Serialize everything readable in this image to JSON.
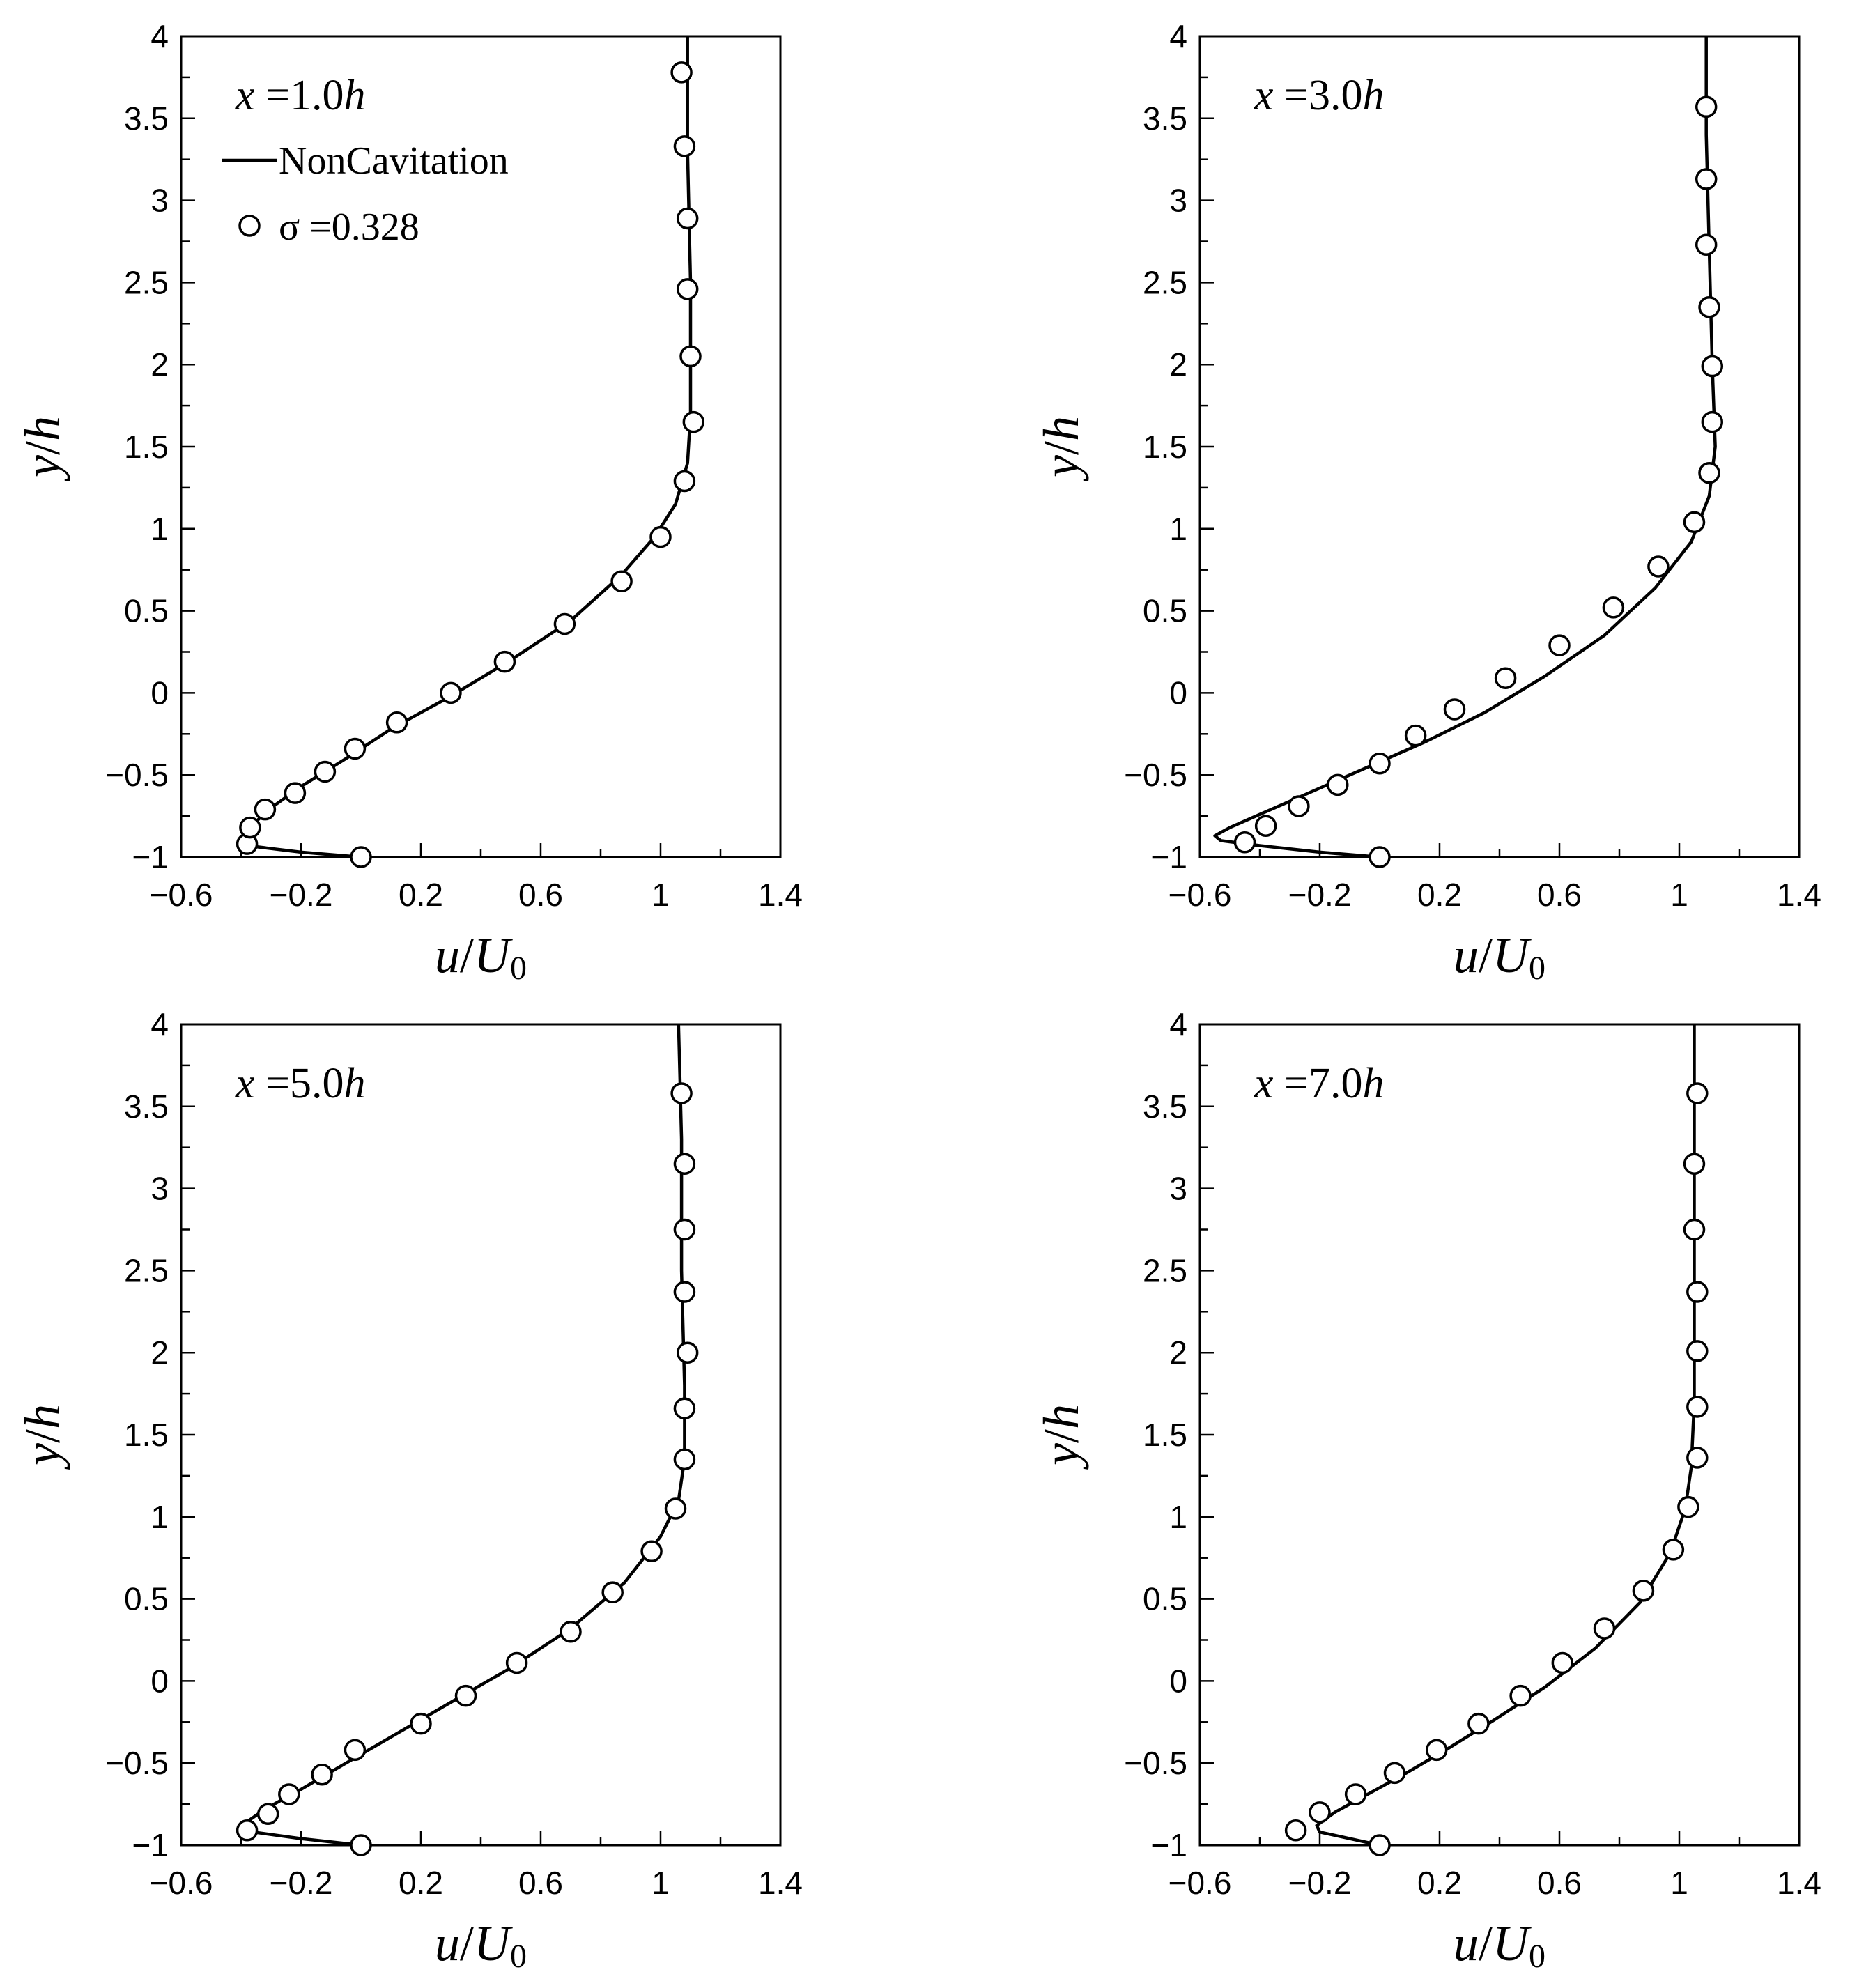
{
  "legend": {
    "line_label": "NonCavitation",
    "marker_label": "σ =0.328"
  },
  "chart_data": [
    {
      "type": "line",
      "title": "x =1.0h",
      "title_parts": {
        "x": "x",
        "eq": " =",
        "num": "1.0",
        "h": "h"
      },
      "xlabel": "u/U0",
      "xlabel_parts": {
        "main": "u/U",
        "sub": "0"
      },
      "ylabel": "y/h",
      "xlim": [
        -0.6,
        1.4
      ],
      "ylim": [
        -1,
        4
      ],
      "xticks": [
        "-0.6",
        "-0.2",
        "0.2",
        "0.6",
        "1",
        "1.4"
      ],
      "yticks": [
        "4",
        "3.5",
        "3",
        "2.5",
        "2",
        "1.5",
        "1",
        "0.5",
        "0",
        "-0.5",
        "-1"
      ],
      "legend_position": "top-left",
      "series": [
        {
          "name": "NonCavitation",
          "style": "line",
          "x": [
            0.0,
            -0.2,
            -0.38,
            -0.39,
            -0.36,
            -0.3,
            -0.2,
            -0.05,
            0.1,
            0.3,
            0.5,
            0.7,
            0.87,
            0.98,
            1.05,
            1.09,
            1.1,
            1.1,
            1.09,
            1.09
          ],
          "y": [
            -1.0,
            -0.97,
            -0.93,
            -0.88,
            -0.8,
            -0.7,
            -0.57,
            -0.4,
            -0.22,
            -0.02,
            0.2,
            0.44,
            0.72,
            0.95,
            1.15,
            1.4,
            1.7,
            2.5,
            3.3,
            4.0
          ]
        },
        {
          "name": "σ =0.328",
          "style": "marker",
          "x": [
            0.0,
            -0.38,
            -0.37,
            -0.32,
            -0.22,
            -0.12,
            -0.02,
            0.12,
            0.3,
            0.48,
            0.68,
            0.87,
            1.0,
            1.08,
            1.11,
            1.1,
            1.09,
            1.09,
            1.08,
            1.07
          ],
          "y": [
            -1.0,
            -0.92,
            -0.82,
            -0.71,
            -0.61,
            -0.48,
            -0.34,
            -0.18,
            0.0,
            0.19,
            0.42,
            0.68,
            0.95,
            1.29,
            1.65,
            2.05,
            2.46,
            2.89,
            3.33,
            3.78
          ]
        }
      ]
    },
    {
      "type": "line",
      "title": "x =3.0h",
      "title_parts": {
        "x": "x",
        "eq": " =",
        "num": "3.0",
        "h": "h"
      },
      "xlabel": "u/U0",
      "xlabel_parts": {
        "main": "u/U",
        "sub": "0"
      },
      "ylabel": "y/h",
      "xlim": [
        -0.6,
        1.4
      ],
      "ylim": [
        -1,
        4
      ],
      "xticks": [
        "-0.6",
        "-0.2",
        "0.2",
        "0.6",
        "1",
        "1.4"
      ],
      "yticks": [
        "4",
        "3.5",
        "3",
        "2.5",
        "2",
        "1.5",
        "1",
        "0.5",
        "0",
        "-0.5",
        "-1"
      ],
      "series": [
        {
          "name": "NonCavitation",
          "style": "line",
          "x": [
            0.0,
            -0.2,
            -0.4,
            -0.53,
            -0.55,
            -0.5,
            -0.4,
            -0.25,
            -0.05,
            0.15,
            0.35,
            0.55,
            0.75,
            0.92,
            1.04,
            1.1,
            1.12,
            1.11,
            1.1,
            1.09,
            1.09
          ],
          "y": [
            -1.0,
            -0.97,
            -0.93,
            -0.9,
            -0.87,
            -0.82,
            -0.74,
            -0.62,
            -0.46,
            -0.3,
            -0.12,
            0.1,
            0.35,
            0.64,
            0.92,
            1.2,
            1.5,
            2.0,
            2.7,
            3.4,
            4.0
          ]
        },
        {
          "name": "σ =0.328",
          "style": "marker",
          "x": [
            0.0,
            -0.45,
            -0.38,
            -0.27,
            -0.14,
            0.0,
            0.12,
            0.25,
            0.42,
            0.6,
            0.78,
            0.93,
            1.05,
            1.1,
            1.11,
            1.11,
            1.1,
            1.09,
            1.09,
            1.09
          ],
          "y": [
            -1.0,
            -0.91,
            -0.81,
            -0.69,
            -0.56,
            -0.43,
            -0.26,
            -0.1,
            0.09,
            0.29,
            0.52,
            0.77,
            1.04,
            1.34,
            1.65,
            1.99,
            2.35,
            2.73,
            3.13,
            3.57
          ]
        }
      ]
    },
    {
      "type": "line",
      "title": "x =5.0h",
      "title_parts": {
        "x": "x",
        "eq": " =",
        "num": "5.0",
        "h": "h"
      },
      "xlabel": "u/U0",
      "xlabel_parts": {
        "main": "u/U",
        "sub": "0"
      },
      "ylabel": "y/h",
      "xlim": [
        -0.6,
        1.4
      ],
      "ylim": [
        -1,
        4
      ],
      "xticks": [
        "-0.6",
        "-0.2",
        "0.2",
        "0.6",
        "1",
        "1.4"
      ],
      "yticks": [
        "4",
        "3.5",
        "3",
        "2.5",
        "2",
        "1.5",
        "1",
        "0.5",
        "0",
        "-0.5",
        "-1"
      ],
      "series": [
        {
          "name": "NonCavitation",
          "style": "line",
          "x": [
            0.0,
            -0.2,
            -0.4,
            -0.39,
            -0.32,
            -0.2,
            -0.05,
            0.12,
            0.3,
            0.5,
            0.7,
            0.88,
            1.0,
            1.06,
            1.08,
            1.08,
            1.07,
            1.07,
            1.06
          ],
          "y": [
            -1.0,
            -0.96,
            -0.91,
            -0.87,
            -0.78,
            -0.66,
            -0.5,
            -0.32,
            -0.13,
            0.08,
            0.32,
            0.6,
            0.88,
            1.1,
            1.35,
            1.8,
            2.5,
            3.3,
            4.0
          ]
        },
        {
          "name": "σ =0.328",
          "style": "marker",
          "x": [
            0.0,
            -0.38,
            -0.31,
            -0.24,
            -0.13,
            -0.02,
            0.2,
            0.35,
            0.52,
            0.7,
            0.84,
            0.97,
            1.05,
            1.08,
            1.08,
            1.09,
            1.08,
            1.08,
            1.08,
            1.07
          ],
          "y": [
            -1.0,
            -0.91,
            -0.81,
            -0.69,
            -0.57,
            -0.42,
            -0.26,
            -0.09,
            0.11,
            0.3,
            0.54,
            0.79,
            1.05,
            1.35,
            1.66,
            2.0,
            2.37,
            2.75,
            3.15,
            3.58
          ]
        }
      ]
    },
    {
      "type": "line",
      "title": "x =7.0h",
      "title_parts": {
        "x": "x",
        "eq": " =",
        "num": "7.0",
        "h": "h"
      },
      "xlabel": "u/U0",
      "xlabel_parts": {
        "main": "u/U",
        "sub": "0"
      },
      "ylabel": "y/h",
      "xlim": [
        -0.6,
        1.4
      ],
      "ylim": [
        -1,
        4
      ],
      "xticks": [
        "-0.6",
        "-0.2",
        "0.2",
        "0.6",
        "1",
        "1.4"
      ],
      "yticks": [
        "4",
        "3.5",
        "3",
        "2.5",
        "2",
        "1.5",
        "1",
        "0.5",
        "0",
        "-0.5",
        "-1"
      ],
      "series": [
        {
          "name": "NonCavitation",
          "style": "line",
          "x": [
            0.0,
            -0.1,
            -0.2,
            -0.21,
            -0.15,
            -0.05,
            0.08,
            0.22,
            0.38,
            0.55,
            0.72,
            0.87,
            0.97,
            1.02,
            1.04,
            1.05,
            1.05,
            1.05,
            1.05
          ],
          "y": [
            -1.0,
            -0.96,
            -0.92,
            -0.88,
            -0.8,
            -0.7,
            -0.57,
            -0.42,
            -0.24,
            -0.04,
            0.2,
            0.48,
            0.78,
            1.05,
            1.3,
            1.7,
            2.4,
            3.2,
            4.0
          ]
        },
        {
          "name": "σ =0.328",
          "style": "marker",
          "x": [
            0.0,
            -0.28,
            -0.2,
            -0.08,
            0.05,
            0.19,
            0.33,
            0.47,
            0.61,
            0.75,
            0.88,
            0.98,
            1.03,
            1.06,
            1.06,
            1.06,
            1.06,
            1.05,
            1.05,
            1.06
          ],
          "y": [
            -1.0,
            -0.91,
            -0.8,
            -0.69,
            -0.56,
            -0.42,
            -0.26,
            -0.09,
            0.11,
            0.32,
            0.55,
            0.8,
            1.06,
            1.36,
            1.67,
            2.01,
            2.37,
            2.75,
            3.15,
            3.58
          ]
        }
      ]
    }
  ]
}
